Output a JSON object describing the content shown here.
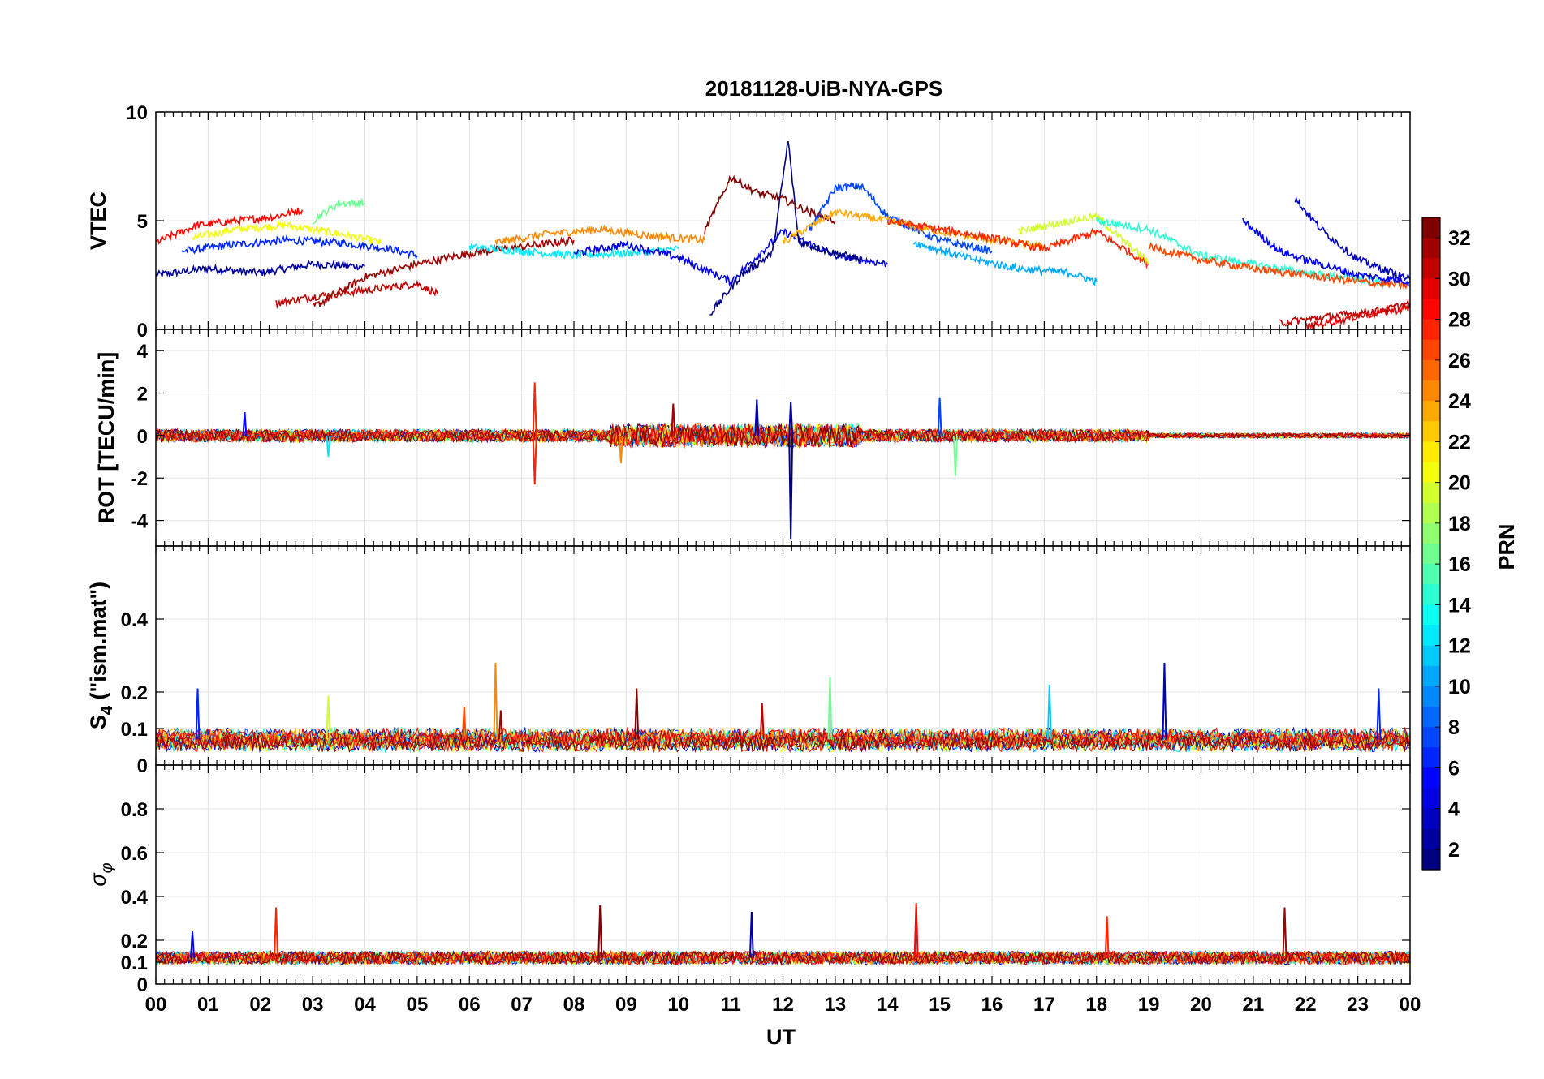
{
  "title": "20181128-UiB-NYA-GPS",
  "colorbar": {
    "label": "PRN",
    "min": 1,
    "max": 32,
    "ticks": [
      "2",
      "4",
      "6",
      "8",
      "10",
      "12",
      "14",
      "16",
      "18",
      "20",
      "22",
      "24",
      "26",
      "28",
      "30",
      "32"
    ]
  },
  "x_axis": {
    "label": "UT",
    "range_hours": [
      0,
      24
    ],
    "tick_labels": [
      "00",
      "01",
      "02",
      "03",
      "04",
      "05",
      "06",
      "07",
      "08",
      "09",
      "10",
      "11",
      "12",
      "13",
      "14",
      "15",
      "16",
      "17",
      "18",
      "19",
      "20",
      "21",
      "22",
      "23",
      "00"
    ]
  },
  "chart_data": [
    {
      "type": "line",
      "ylabel": "VTEC",
      "ylim": [
        0,
        10
      ],
      "yticks": [
        0,
        5,
        10
      ],
      "ytick_labels": [
        "0",
        "5",
        "10"
      ],
      "grid": true,
      "note_series": "one line per PRN satellite track, colour by PRN",
      "series": [
        {
          "prn": 2,
          "x": [
            0.0,
            1.0,
            2.0,
            3.0,
            4.0
          ],
          "y": [
            2.5,
            2.8,
            2.6,
            3.0,
            2.9
          ]
        },
        {
          "prn": 6,
          "x": [
            0.5,
            1.5,
            2.5,
            3.5,
            4.5,
            5.0
          ],
          "y": [
            3.6,
            3.9,
            4.1,
            4.0,
            3.7,
            3.4
          ]
        },
        {
          "prn": 20,
          "x": [
            0.7,
            1.5,
            2.5,
            3.5,
            4.3
          ],
          "y": [
            4.2,
            4.6,
            4.8,
            4.4,
            4.0
          ]
        },
        {
          "prn": 28,
          "x": [
            0.0,
            0.8,
            1.6,
            2.3,
            2.8
          ],
          "y": [
            4.0,
            4.8,
            5.0,
            5.2,
            5.5
          ]
        },
        {
          "prn": 30,
          "x": [
            2.3,
            3.0,
            4.0,
            5.0,
            5.4
          ],
          "y": [
            1.2,
            1.5,
            1.8,
            2.1,
            1.6
          ]
        },
        {
          "prn": 31,
          "x": [
            3.0,
            4.0,
            5.0,
            6.0,
            7.0,
            8.0
          ],
          "y": [
            1.0,
            2.4,
            3.0,
            3.5,
            3.8,
            4.1
          ]
        },
        {
          "prn": 16,
          "x": [
            3.0,
            3.5,
            4.0
          ],
          "y": [
            5.0,
            5.8,
            5.8
          ]
        },
        {
          "prn": 12,
          "x": [
            6.0,
            7.0,
            8.0,
            9.0,
            10.0
          ],
          "y": [
            3.8,
            3.6,
            3.4,
            3.5,
            3.7
          ]
        },
        {
          "prn": 24,
          "x": [
            6.5,
            7.5,
            8.5,
            9.5,
            10.5
          ],
          "y": [
            4.0,
            4.4,
            4.6,
            4.3,
            4.1
          ]
        },
        {
          "prn": 4,
          "x": [
            8.0,
            9.0,
            10.0,
            11.0,
            12.0,
            13.0,
            14.0
          ],
          "y": [
            3.5,
            3.9,
            3.3,
            2.2,
            4.5,
            3.4,
            3.0
          ]
        },
        {
          "prn": 1,
          "x": [
            10.6,
            11.2,
            11.8,
            12.1,
            12.3,
            13.0,
            13.5
          ],
          "y": [
            0.7,
            2.5,
            3.5,
            8.7,
            4.0,
            3.5,
            3.2
          ]
        },
        {
          "prn": 32,
          "x": [
            10.5,
            11.0,
            11.5,
            12.0,
            12.5,
            13.0
          ],
          "y": [
            4.5,
            7.0,
            6.3,
            6.0,
            5.4,
            5.0
          ]
        },
        {
          "prn": 7,
          "x": [
            12.5,
            13.0,
            13.5,
            14.0,
            15.0,
            16.0
          ],
          "y": [
            4.5,
            6.5,
            6.6,
            5.2,
            4.1,
            3.6
          ]
        },
        {
          "prn": 23,
          "x": [
            12.0,
            13.0,
            14.0,
            15.0,
            16.0,
            17.0
          ],
          "y": [
            4.0,
            5.4,
            5.0,
            4.5,
            4.1,
            3.8
          ]
        },
        {
          "prn": 27,
          "x": [
            14.0,
            15.0,
            16.0,
            17.0,
            18.0,
            19.0
          ],
          "y": [
            5.0,
            4.6,
            4.2,
            3.7,
            4.5,
            3.0
          ]
        },
        {
          "prn": 10,
          "x": [
            14.5,
            15.5,
            16.5,
            17.5,
            18.0
          ],
          "y": [
            4.0,
            3.3,
            2.8,
            2.6,
            2.2
          ]
        },
        {
          "prn": 19,
          "x": [
            16.5,
            17.5,
            18.0,
            18.5,
            19.0
          ],
          "y": [
            4.5,
            5.0,
            5.2,
            4.1,
            3.1
          ]
        },
        {
          "prn": 14,
          "x": [
            18.0,
            19.0,
            20.0,
            21.0,
            22.0,
            23.0,
            23.5
          ],
          "y": [
            5.0,
            4.6,
            3.4,
            3.0,
            2.6,
            2.3,
            2.1
          ]
        },
        {
          "prn": 26,
          "x": [
            19.0,
            20.0,
            21.0,
            22.0,
            23.0,
            24.0
          ],
          "y": [
            3.8,
            3.2,
            2.8,
            2.5,
            2.2,
            2.0
          ]
        },
        {
          "prn": 5,
          "x": [
            20.8,
            21.5,
            22.0,
            23.0,
            24.0
          ],
          "y": [
            5.0,
            3.6,
            3.2,
            2.5,
            2.2
          ]
        },
        {
          "prn": 3,
          "x": [
            21.8,
            22.3,
            23.0,
            24.0
          ],
          "y": [
            6.0,
            4.6,
            3.2,
            2.3
          ]
        },
        {
          "prn": 30,
          "x": [
            21.5,
            22.5,
            23.5,
            24.0
          ],
          "y": [
            0.3,
            0.6,
            0.9,
            1.2
          ]
        },
        {
          "prn": 29,
          "x": [
            22.0,
            23.0,
            24.0
          ],
          "y": [
            0.1,
            0.6,
            1.0
          ]
        }
      ]
    },
    {
      "type": "line",
      "ylabel": "ROT [TECU/min]",
      "ylim": [
        -5.2,
        5
      ],
      "yticks": [
        -4,
        -2,
        0,
        2,
        4
      ],
      "ytick_labels": [
        "-4",
        "-2",
        "0",
        "2",
        "4"
      ],
      "grid": true,
      "spikes": [
        {
          "prn": 27,
          "x": 7.25,
          "y": 2.5
        },
        {
          "prn": 27,
          "x": 7.25,
          "y": -2.3
        },
        {
          "prn": 1,
          "x": 12.15,
          "y": -4.9
        },
        {
          "prn": 2,
          "x": 12.15,
          "y": 1.6
        },
        {
          "prn": 7,
          "x": 15.0,
          "y": 1.8
        },
        {
          "prn": 16,
          "x": 15.3,
          "y": -1.9
        },
        {
          "prn": 24,
          "x": 8.9,
          "y": -1.3
        },
        {
          "prn": 31,
          "x": 9.9,
          "y": 1.5
        },
        {
          "prn": 3,
          "x": 11.5,
          "y": 1.7
        },
        {
          "prn": 12,
          "x": 3.3,
          "y": -1.0
        },
        {
          "prn": 5,
          "x": 1.7,
          "y": 1.1
        }
      ]
    },
    {
      "type": "line",
      "ylabel": "S4 (\"ism.mat\")",
      "ylabel_main": "S",
      "ylabel_sub": "4",
      "ylabel_rest": " (\"ism.mat\")",
      "ylim": [
        0,
        0.6
      ],
      "yticks": [
        0,
        0.1,
        0.2,
        0.4
      ],
      "ytick_labels": [
        "0",
        "0.1",
        "0.2",
        "0.4"
      ],
      "grid": true,
      "baseline": 0.07,
      "spikes": [
        {
          "prn": 6,
          "x": 0.8,
          "y": 0.21
        },
        {
          "prn": 24,
          "x": 6.5,
          "y": 0.28
        },
        {
          "prn": 31,
          "x": 6.6,
          "y": 0.15
        },
        {
          "prn": 32,
          "x": 9.2,
          "y": 0.21
        },
        {
          "prn": 30,
          "x": 11.6,
          "y": 0.17
        },
        {
          "prn": 16,
          "x": 12.9,
          "y": 0.24
        },
        {
          "prn": 11,
          "x": 17.1,
          "y": 0.22
        },
        {
          "prn": 3,
          "x": 19.3,
          "y": 0.28
        },
        {
          "prn": 6,
          "x": 23.4,
          "y": 0.21
        },
        {
          "prn": 19,
          "x": 3.3,
          "y": 0.19
        },
        {
          "prn": 26,
          "x": 5.9,
          "y": 0.16
        }
      ]
    },
    {
      "type": "line",
      "ylabel": "σφ",
      "ylabel_main": "σ",
      "ylabel_sub": "φ",
      "ylim": [
        0,
        1
      ],
      "yticks": [
        0,
        0.1,
        0.2,
        0.4,
        0.6,
        0.8
      ],
      "ytick_labels": [
        "0",
        "0.1",
        "0.2",
        "0.4",
        "0.6",
        "0.8"
      ],
      "grid": true,
      "baseline": 0.12,
      "spikes": [
        {
          "prn": 27,
          "x": 2.3,
          "y": 0.35
        },
        {
          "prn": 32,
          "x": 8.5,
          "y": 0.36
        },
        {
          "prn": 2,
          "x": 11.4,
          "y": 0.33
        },
        {
          "prn": 28,
          "x": 14.55,
          "y": 0.37
        },
        {
          "prn": 27,
          "x": 18.2,
          "y": 0.31
        },
        {
          "prn": 31,
          "x": 21.6,
          "y": 0.35
        },
        {
          "prn": 4,
          "x": 0.7,
          "y": 0.24
        }
      ]
    }
  ]
}
